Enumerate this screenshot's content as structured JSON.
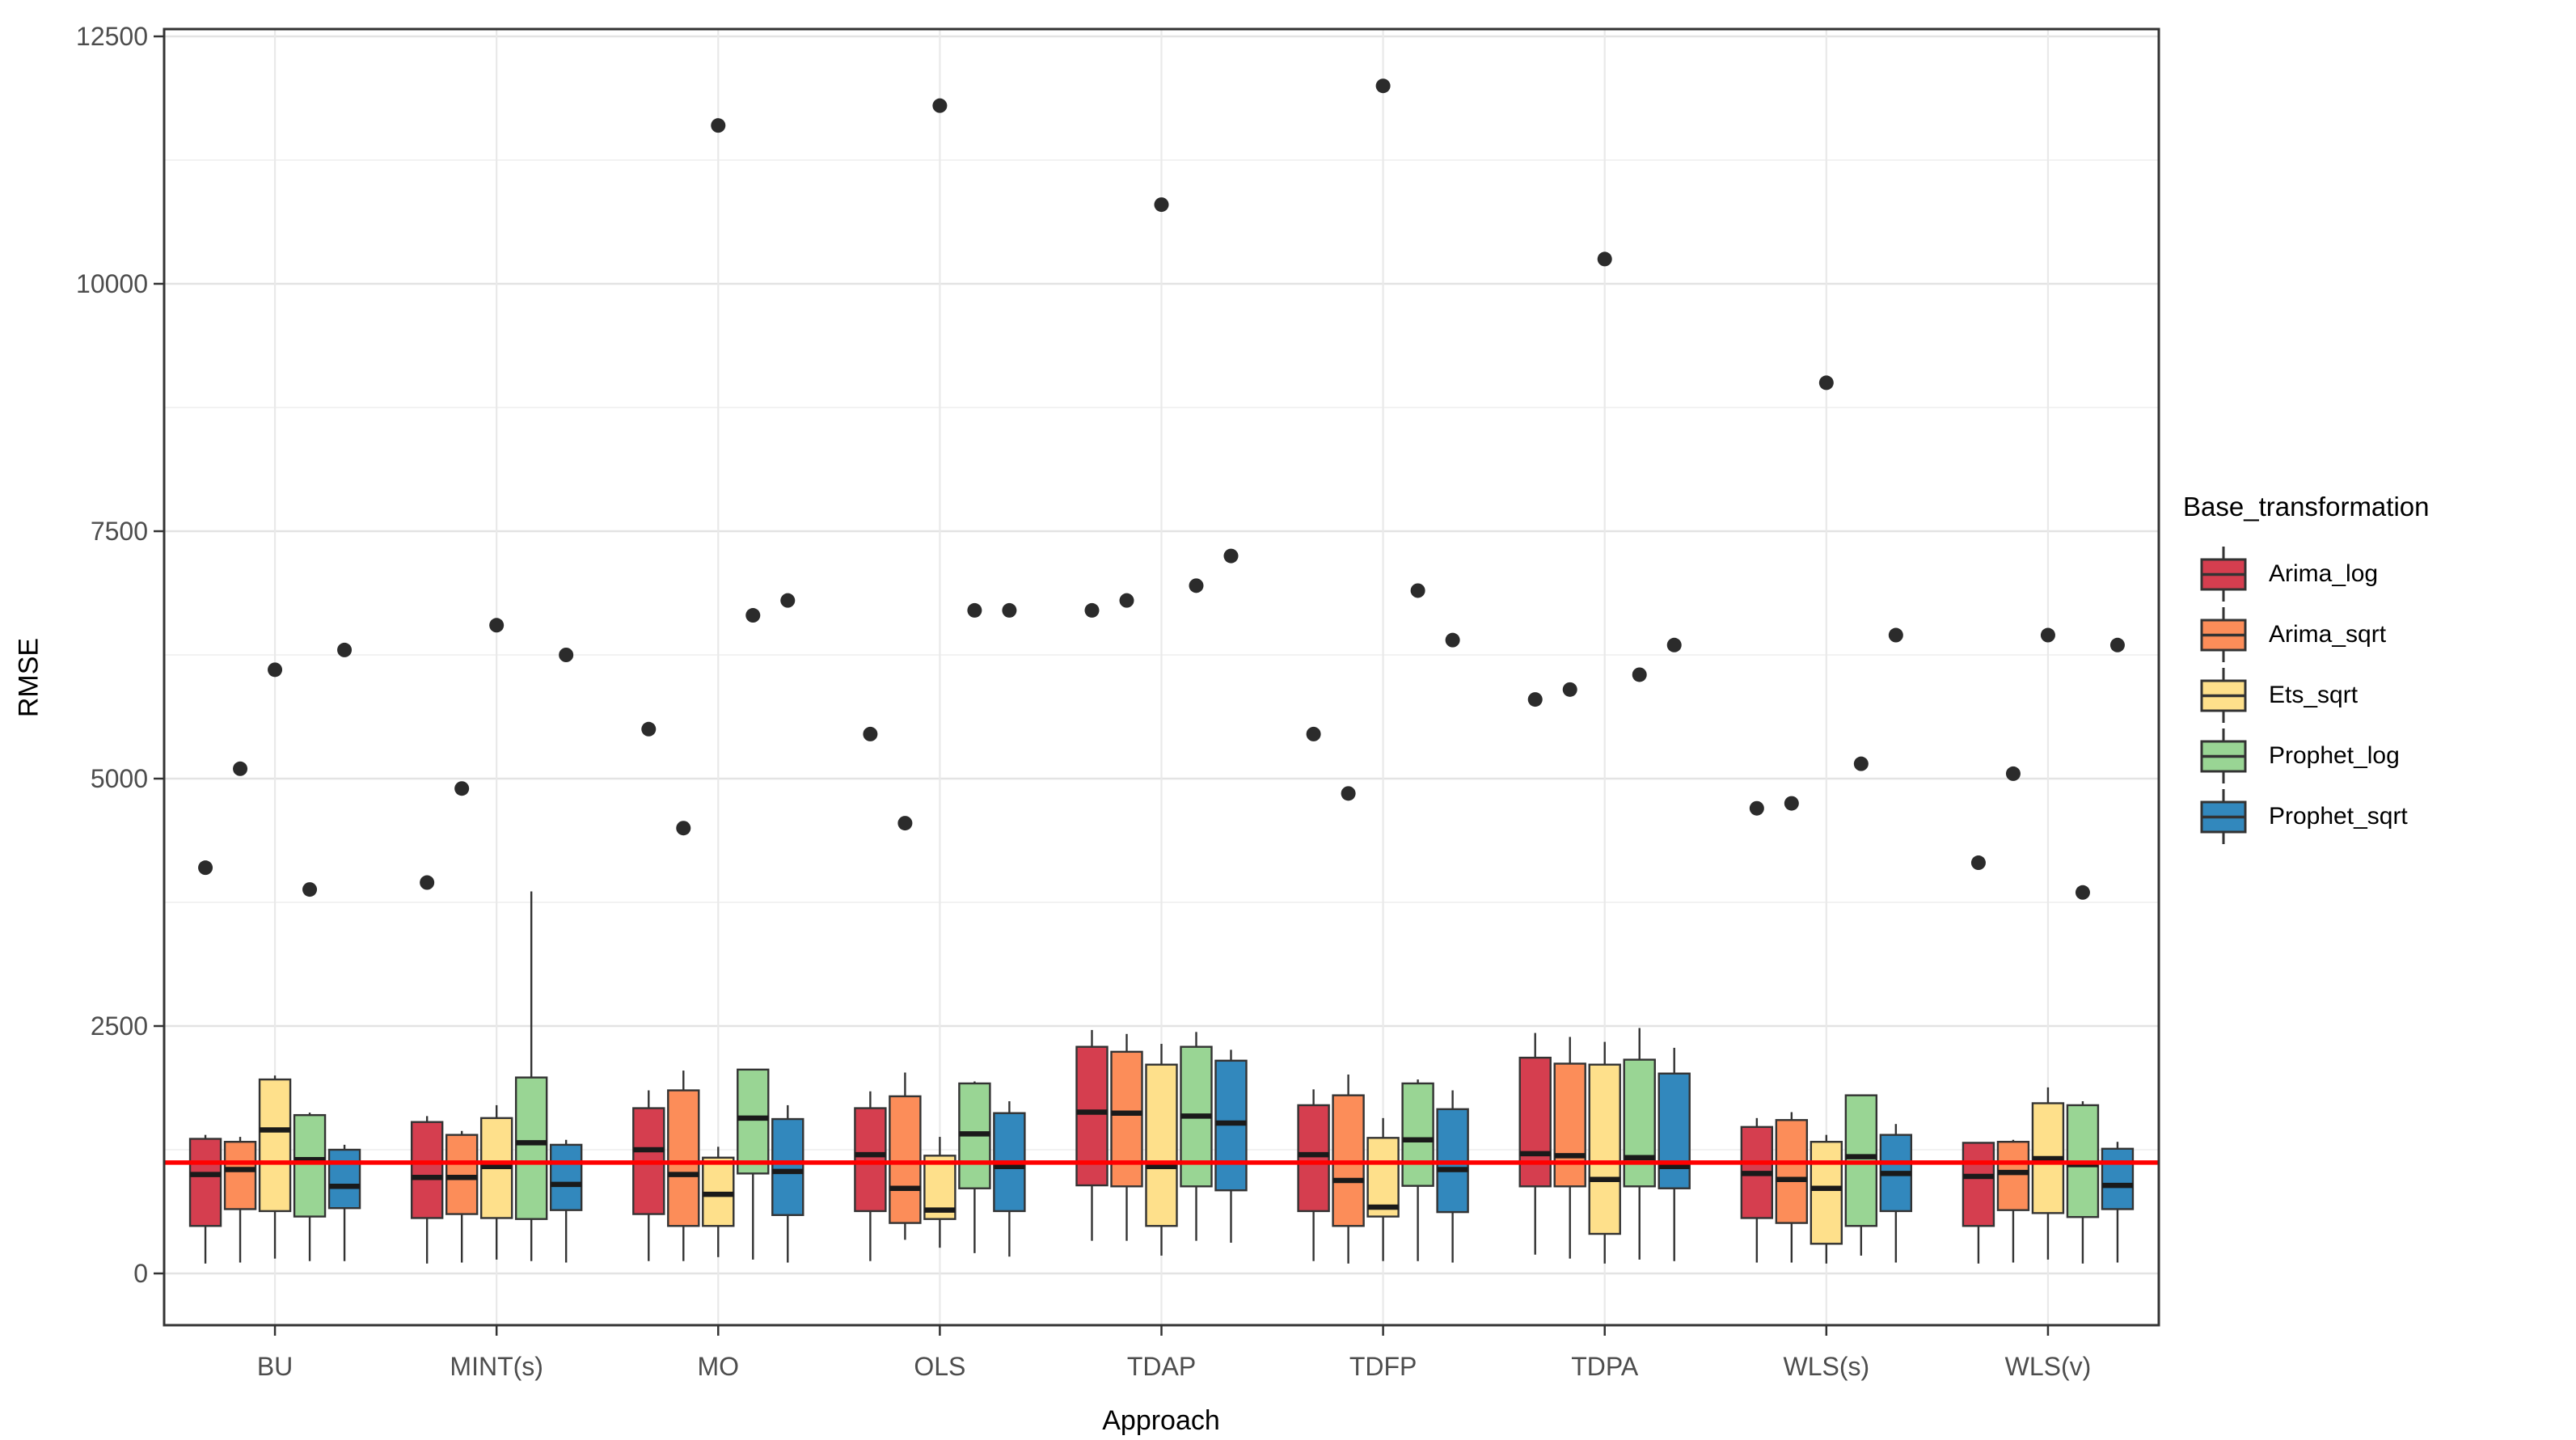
{
  "axes": {
    "x_title": "Approach",
    "y_title": "RMSE"
  },
  "legend": {
    "title": "Base_transformation",
    "items": [
      {
        "label": "Arima_log",
        "color": "#D53E4F"
      },
      {
        "label": "Arima_sqrt",
        "color": "#FC8D59"
      },
      {
        "label": "Ets_sqrt",
        "color": "#FEE08B"
      },
      {
        "label": "Prophet_log",
        "color": "#99D594"
      },
      {
        "label": "Prophet_sqrt",
        "color": "#3288BD"
      }
    ]
  },
  "chart_data": {
    "type": "boxplot",
    "title": "",
    "xlabel": "Approach",
    "ylabel": "RMSE",
    "ylim": [
      0,
      12500
    ],
    "y_ticks": [
      0,
      2500,
      5000,
      7500,
      10000,
      12500
    ],
    "y_minor_ticks": [
      1250,
      3750,
      6250,
      8750,
      11250
    ],
    "grid": true,
    "legend_title": "Base_transformation",
    "legend_position": "right",
    "categories": [
      "BU",
      "MINT(s)",
      "MO",
      "OLS",
      "TDAP",
      "TDFP",
      "TDPA",
      "WLS(s)",
      "WLS(v)"
    ],
    "reference_line": {
      "value": 1120,
      "color": "#FF0000"
    },
    "box_format": [
      "whisker_low",
      "q1",
      "median",
      "q3",
      "whisker_high"
    ],
    "series": [
      {
        "name": "Arima_log",
        "color": "#D53E4F",
        "boxes": [
          [
            100,
            480,
            1000,
            1360,
            1400
          ],
          [
            100,
            560,
            970,
            1530,
            1590
          ],
          [
            125,
            600,
            1250,
            1670,
            1850
          ],
          [
            125,
            630,
            1200,
            1670,
            1840
          ],
          [
            330,
            890,
            1630,
            2290,
            2460
          ],
          [
            125,
            630,
            1200,
            1700,
            1860
          ],
          [
            190,
            880,
            1210,
            2180,
            2430
          ],
          [
            110,
            560,
            1010,
            1480,
            1570
          ],
          [
            100,
            480,
            980,
            1320,
            1320
          ]
        ],
        "outliers": [
          [
            4100
          ],
          [
            3950
          ],
          [
            5500
          ],
          [
            5450
          ],
          [
            6700
          ],
          [
            5450
          ],
          [
            5800
          ],
          [
            4700
          ],
          [
            4150
          ]
        ]
      },
      {
        "name": "Arima_sqrt",
        "color": "#FC8D59",
        "boxes": [
          [
            110,
            650,
            1050,
            1330,
            1380
          ],
          [
            110,
            600,
            970,
            1400,
            1440
          ],
          [
            125,
            480,
            1000,
            1850,
            2050
          ],
          [
            340,
            510,
            860,
            1790,
            2030
          ],
          [
            330,
            880,
            1620,
            2240,
            2420
          ],
          [
            100,
            480,
            940,
            1800,
            2010
          ],
          [
            150,
            880,
            1190,
            2120,
            2390
          ],
          [
            110,
            510,
            950,
            1550,
            1630
          ],
          [
            110,
            640,
            1020,
            1330,
            1350
          ]
        ],
        "outliers": [
          [
            5100
          ],
          [
            4900
          ],
          [
            4500
          ],
          [
            4550
          ],
          [
            6800
          ],
          [
            4850
          ],
          [
            5900
          ],
          [
            4750
          ],
          [
            5050
          ]
        ]
      },
      {
        "name": "Ets_sqrt",
        "color": "#FEE08B",
        "boxes": [
          [
            150,
            630,
            1450,
            1960,
            2000
          ],
          [
            140,
            560,
            1080,
            1570,
            1700
          ],
          [
            165,
            480,
            800,
            1170,
            1280
          ],
          [
            260,
            550,
            640,
            1190,
            1380
          ],
          [
            180,
            480,
            1080,
            2110,
            2320
          ],
          [
            125,
            575,
            670,
            1370,
            1570
          ],
          [
            100,
            400,
            950,
            2110,
            2340
          ],
          [
            100,
            300,
            860,
            1330,
            1400
          ],
          [
            140,
            610,
            1160,
            1720,
            1880
          ]
        ],
        "outliers": [
          [
            6100
          ],
          [
            6550
          ],
          [
            11600
          ],
          [
            11800
          ],
          [
            10800
          ],
          [
            12000
          ],
          [
            10250
          ],
          [
            9000
          ],
          [
            6450
          ]
        ]
      },
      {
        "name": "Prophet_log",
        "color": "#99D594",
        "boxes": [
          [
            125,
            575,
            1150,
            1600,
            1625
          ],
          [
            125,
            550,
            1320,
            1980,
            3860
          ],
          [
            140,
            1010,
            1570,
            2060,
            2060
          ],
          [
            205,
            860,
            1410,
            1920,
            1940
          ],
          [
            330,
            880,
            1590,
            2290,
            2440
          ],
          [
            125,
            885,
            1350,
            1920,
            1960
          ],
          [
            140,
            880,
            1170,
            2160,
            2480
          ],
          [
            180,
            480,
            1180,
            1800,
            1800
          ],
          [
            100,
            570,
            1100,
            1700,
            1740
          ]
        ],
        "outliers": [
          [
            3880
          ],
          [],
          [
            6650
          ],
          [
            6700
          ],
          [
            6950
          ],
          [
            6900
          ],
          [
            6050
          ],
          [
            5150
          ],
          [
            3850
          ]
        ]
      },
      {
        "name": "Prophet_sqrt",
        "color": "#3288BD",
        "boxes": [
          [
            125,
            660,
            880,
            1250,
            1300
          ],
          [
            110,
            640,
            900,
            1300,
            1350
          ],
          [
            110,
            590,
            1030,
            1560,
            1700
          ],
          [
            170,
            630,
            1080,
            1620,
            1740
          ],
          [
            310,
            840,
            1520,
            2150,
            2260
          ],
          [
            110,
            620,
            1050,
            1660,
            1850
          ],
          [
            125,
            860,
            1080,
            2020,
            2280
          ],
          [
            110,
            630,
            1010,
            1400,
            1510
          ],
          [
            110,
            650,
            890,
            1260,
            1330
          ]
        ],
        "outliers": [
          [
            6300
          ],
          [
            6250
          ],
          [
            6800
          ],
          [
            6700
          ],
          [
            7250
          ],
          [
            6400
          ],
          [
            6350
          ],
          [
            6450
          ],
          [
            6350
          ]
        ]
      }
    ]
  }
}
